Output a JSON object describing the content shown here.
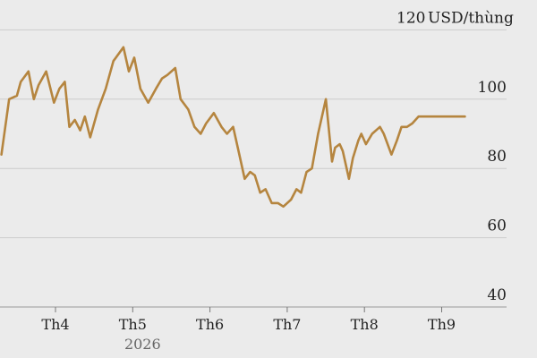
{
  "chart_data": {
    "type": "line",
    "title": "",
    "xlabel": "",
    "ylabel": "",
    "y_unit": "USD/thùng",
    "ylim": [
      35,
      125
    ],
    "y_ticks": [
      40,
      60,
      80,
      100,
      120
    ],
    "x_ticks": [
      {
        "label": "Th4",
        "month": 4
      },
      {
        "label": "Th5",
        "month": 5
      },
      {
        "label": "Th6",
        "month": 6
      },
      {
        "label": "Th7",
        "month": 7
      },
      {
        "label": "Th8",
        "month": 8
      },
      {
        "label": "Th9",
        "month": 9
      }
    ],
    "year_label": "2026",
    "grid": true,
    "legend": "none",
    "colors": {
      "line": "#b5853f",
      "background": "#ebebeb"
    },
    "series": [
      {
        "month": [
          3.3,
          3.4,
          3.5,
          3.55,
          3.65,
          3.72,
          3.78,
          3.88,
          3.98,
          4.05,
          4.12,
          4.18,
          4.25,
          4.32,
          4.38,
          4.45,
          4.55,
          4.65,
          4.75,
          4.88,
          4.95,
          5.02,
          5.1,
          5.2,
          5.3,
          5.38,
          5.45,
          5.55,
          5.62,
          5.72,
          5.8,
          5.88,
          5.95,
          6.05,
          6.15,
          6.22,
          6.3,
          6.38,
          6.45,
          6.52,
          6.58,
          6.65,
          6.72,
          6.8,
          6.88,
          6.95,
          7.05,
          7.12,
          7.18,
          7.25,
          7.32,
          7.4,
          7.5,
          7.58,
          7.62,
          7.68,
          7.72,
          7.8,
          7.85,
          7.92,
          7.96,
          8.02,
          8.1,
          8.2,
          8.25,
          8.35,
          8.42,
          8.48,
          8.55,
          8.62,
          8.7,
          8.82,
          8.95,
          9.1,
          9.2,
          9.3
        ],
        "values": [
          84,
          100,
          101,
          105,
          108,
          100,
          104,
          108,
          99,
          103,
          105,
          92,
          94,
          91,
          95,
          89,
          97,
          103,
          111,
          115,
          108,
          112,
          103,
          99,
          103,
          106,
          107,
          109,
          100,
          97,
          92,
          90,
          93,
          96,
          92,
          90,
          92,
          84,
          77,
          79,
          78,
          73,
          74,
          70,
          70,
          69,
          71,
          74,
          73,
          79,
          80,
          90,
          100,
          82,
          86,
          87,
          85,
          77,
          83,
          88,
          90,
          87,
          90,
          92,
          90,
          84,
          88,
          92,
          92,
          93,
          95,
          95,
          95,
          95,
          95,
          95
        ]
      }
    ]
  }
}
